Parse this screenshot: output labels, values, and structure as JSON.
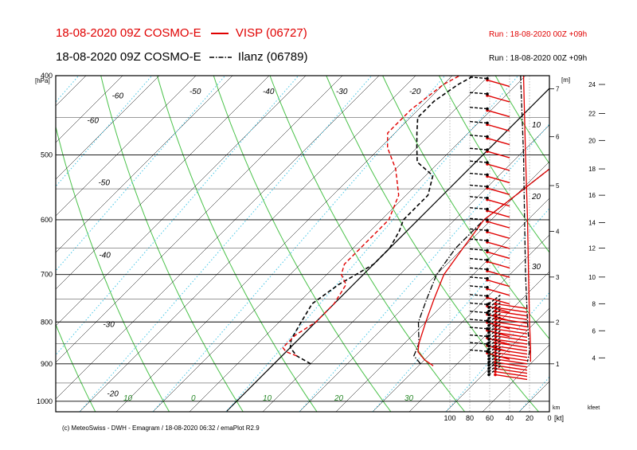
{
  "header": {
    "line1_left": "18-08-2020 09Z COSMO-E",
    "line1_station": "VISP (06727)",
    "line1_run": "Run : 18-08-2020 00Z +09h",
    "line2_left": "18-08-2020 09Z COSMO-E",
    "line2_station": "Ilanz (06789)",
    "line2_run": "Run : 18-08-2020 00Z +09h",
    "color_visp": "#e00000",
    "color_ilanz": "#000000"
  },
  "footer": "(c) MeteoSwiss - DWH - Emagram / 18-08-2020  06:32 / emaPlot R2.9",
  "chart_data": {
    "type": "line",
    "chart_kind": "emagram",
    "pressure_axis": {
      "unit_label": "[hPa]",
      "ticks": [
        400,
        500,
        600,
        700,
        800,
        900,
        1000
      ],
      "range": [
        400,
        1030
      ],
      "scale": "log"
    },
    "temperature_axis": {
      "range_at_base": [
        -22,
        44
      ],
      "skew_deg_per_decade": 0,
      "bottom_labels": [
        10,
        0,
        10,
        20,
        30
      ],
      "isotherm_labels": [
        {
          "t": -60,
          "p": 415
        },
        {
          "t": -50,
          "p": 410
        },
        {
          "t": -40,
          "p": 410
        },
        {
          "t": -30,
          "p": 410
        },
        {
          "t": -20,
          "p": 410
        },
        {
          "t": -60,
          "p": 445
        },
        {
          "t": -50,
          "p": 530
        },
        {
          "t": -40,
          "p": 650
        },
        {
          "t": -30,
          "p": 790
        },
        {
          "t": -20,
          "p": 960
        }
      ]
    },
    "height_axis": {
      "unit_label": "[m]",
      "ticks_km": [
        1,
        2,
        3,
        4,
        5,
        6,
        7
      ],
      "ticks_p": [
        900,
        800,
        705,
        620,
        545,
        475,
        415
      ],
      "km_label": "km"
    },
    "kfeet_axis": {
      "ticks": [
        4,
        6,
        8,
        10,
        12,
        14,
        16,
        18,
        20,
        22,
        24
      ],
      "ticks_p": [
        885,
        820,
        760,
        705,
        650,
        605,
        560,
        520,
        480,
        445,
        410
      ],
      "label": "kfeet"
    },
    "wind_axis": {
      "ticks": [
        100,
        80,
        60,
        40,
        20,
        0
      ],
      "unit": "[kt]"
    },
    "mixing_ratio_labels": [
      10,
      20,
      30
    ],
    "series": [
      {
        "name": "VISP (06727)",
        "color": "#e00000",
        "temperature": [
          [
            905,
            22
          ],
          [
            890,
            20
          ],
          [
            870,
            18
          ],
          [
            850,
            17
          ],
          [
            800,
            15
          ],
          [
            750,
            13
          ],
          [
            700,
            11
          ],
          [
            650,
            10
          ],
          [
            600,
            9
          ],
          [
            560,
            10
          ],
          [
            520,
            11
          ],
          [
            480,
            11
          ],
          [
            455,
            9
          ],
          [
            430,
            6
          ],
          [
            400,
            6
          ]
        ],
        "dewpoint": [
          [
            880,
            2
          ],
          [
            870,
            0
          ],
          [
            860,
            -1
          ],
          [
            845,
            -1
          ],
          [
            830,
            -1
          ],
          [
            800,
            0
          ],
          [
            760,
            0
          ],
          [
            720,
            -1
          ],
          [
            700,
            -3
          ],
          [
            680,
            -4
          ],
          [
            650,
            -4
          ],
          [
            600,
            -4
          ],
          [
            560,
            -6
          ],
          [
            520,
            -10
          ],
          [
            490,
            -14
          ],
          [
            470,
            -16
          ],
          [
            440,
            -16
          ],
          [
            410,
            -15
          ],
          [
            400,
            -14
          ]
        ],
        "wind_profile": [
          [
            920,
            1.2
          ],
          [
            880,
            2
          ],
          [
            800,
            3.5
          ],
          [
            700,
            4
          ],
          [
            600,
            5
          ],
          [
            500,
            6
          ],
          [
            450,
            7
          ],
          [
            400,
            9
          ]
        ]
      },
      {
        "name": "Ilanz (06789)",
        "color": "#000000",
        "temperature": [
          [
            900,
            20
          ],
          [
            880,
            18
          ],
          [
            850,
            17
          ],
          [
            800,
            14
          ],
          [
            750,
            12
          ],
          [
            700,
            10
          ],
          [
            650,
            9
          ],
          [
            600,
            9
          ],
          [
            560,
            10
          ],
          [
            520,
            11
          ],
          [
            490,
            12
          ],
          [
            460,
            11
          ],
          [
            430,
            8
          ],
          [
            400,
            7
          ]
        ],
        "dewpoint": [
          [
            900,
            5
          ],
          [
            880,
            2
          ],
          [
            860,
            0
          ],
          [
            840,
            -1
          ],
          [
            800,
            -2
          ],
          [
            760,
            -3
          ],
          [
            720,
            -2
          ],
          [
            700,
            -1
          ],
          [
            680,
            0
          ],
          [
            650,
            0
          ],
          [
            620,
            -1
          ],
          [
            600,
            -2
          ],
          [
            560,
            -2
          ],
          [
            530,
            -4
          ],
          [
            510,
            -8
          ],
          [
            490,
            -10
          ],
          [
            470,
            -12
          ],
          [
            450,
            -14
          ],
          [
            430,
            -14
          ],
          [
            410,
            -13
          ],
          [
            400,
            -12
          ]
        ],
        "wind_profile": [
          [
            900,
            4
          ],
          [
            860,
            5
          ],
          [
            800,
            6
          ],
          [
            700,
            7
          ],
          [
            600,
            7
          ],
          [
            500,
            8
          ],
          [
            400,
            9
          ]
        ]
      }
    ]
  }
}
